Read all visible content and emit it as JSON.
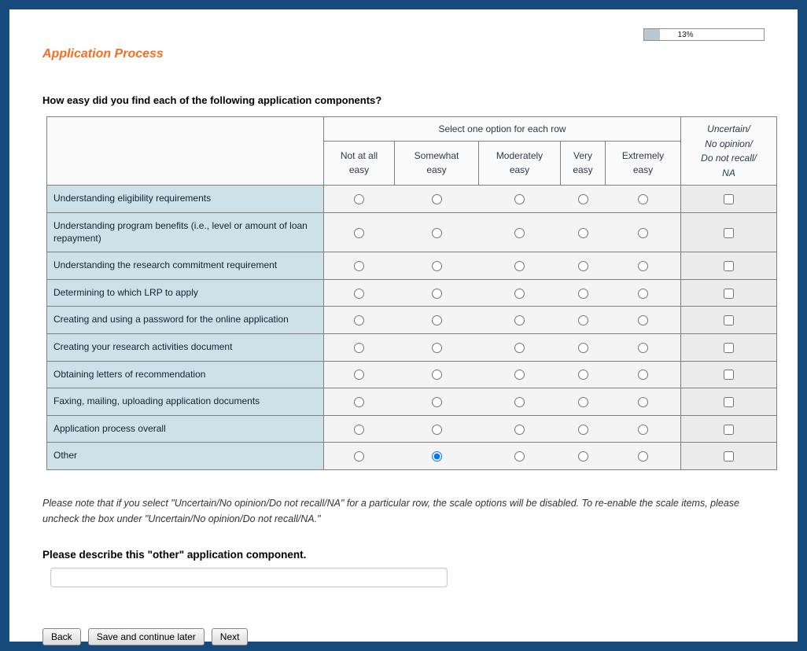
{
  "progress": {
    "label": "13%",
    "fill_percent": 13
  },
  "title": "Application Process",
  "question": "How easy did you find each of the following application components?",
  "table": {
    "group_header": "Select one option for each row",
    "uncertain_header": "Uncertain/\nNo opinion/\nDo not recall/\nNA",
    "columns": [
      "Not at all\neasy",
      "Somewhat\neasy",
      "Moderately\neasy",
      "Very\neasy",
      "Extremely\neasy"
    ],
    "rows": [
      {
        "label": "Understanding eligibility requirements",
        "selected": -1,
        "na_checked": false
      },
      {
        "label": "Understanding program benefits (i.e., level or amount of loan repayment)",
        "selected": -1,
        "na_checked": false
      },
      {
        "label": "Understanding the research commitment requirement",
        "selected": -1,
        "na_checked": false
      },
      {
        "label": "Determining to which LRP to apply",
        "selected": -1,
        "na_checked": false
      },
      {
        "label": "Creating and using a password for the online application",
        "selected": -1,
        "na_checked": false
      },
      {
        "label": "Creating your research activities document",
        "selected": -1,
        "na_checked": false
      },
      {
        "label": "Obtaining letters of recommendation",
        "selected": -1,
        "na_checked": false
      },
      {
        "label": "Faxing, mailing, uploading application documents",
        "selected": -1,
        "na_checked": false
      },
      {
        "label": "Application process overall",
        "selected": -1,
        "na_checked": false
      },
      {
        "label": "Other",
        "selected": 1,
        "na_checked": false
      }
    ]
  },
  "note": "Please note that if you select \"Uncertain/No opinion/Do not recall/NA\" for a particular row, the scale options will be disabled.  To re-enable the scale items, please uncheck the box under \"Uncertain/No opinion/Do not recall/NA.\"",
  "other_label": "Please describe this \"other\" application component.",
  "other_input": {
    "value": ""
  },
  "buttons": {
    "back": "Back",
    "save": "Save and continue later",
    "next": "Next"
  }
}
